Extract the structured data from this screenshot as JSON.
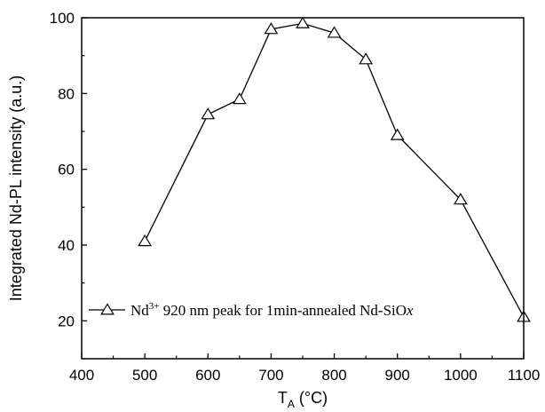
{
  "chart_data": {
    "type": "line",
    "xlabel": "T",
    "xlabel_subscript": "A",
    "xlabel_unit": " (°C)",
    "ylabel": "Integrated Nd-PL intensity (a.u.)",
    "xlim": [
      400,
      1100
    ],
    "ylim": [
      10,
      100
    ],
    "x_ticks": [
      400,
      500,
      600,
      700,
      800,
      900,
      1000,
      1100
    ],
    "y_ticks": [
      20,
      40,
      60,
      80,
      100
    ],
    "grid": false,
    "legend_position": "bottom-left",
    "marker": "open-triangle",
    "color": "#000000",
    "series": [
      {
        "legend": {
          "prefix": "Nd",
          "superscript": "3+",
          "middle": " 920 nm peak for 1min-annealed Nd-SiO",
          "italic_suffix": "x"
        },
        "x": [
          500,
          600,
          650,
          700,
          750,
          800,
          850,
          900,
          1000,
          1100
        ],
        "values": [
          41,
          74.5,
          78.5,
          97,
          98.5,
          96,
          89,
          69,
          52,
          21
        ]
      }
    ]
  }
}
